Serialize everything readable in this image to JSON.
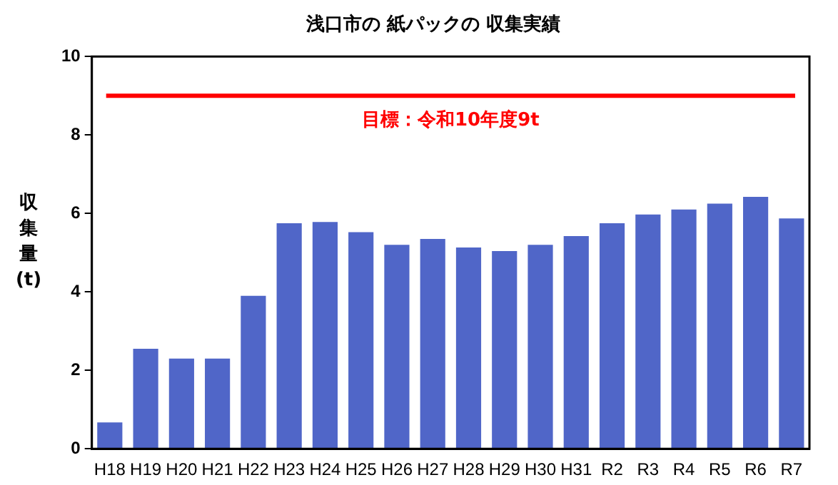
{
  "chart_data": {
    "type": "bar",
    "title": "浅口市の 紙パックの 収集実績",
    "ylabel": "収集量(t)",
    "categories": [
      "H18",
      "H19",
      "H20",
      "H21",
      "H22",
      "H23",
      "H24",
      "H25",
      "H26",
      "H27",
      "H28",
      "H29",
      "H30",
      "H31",
      "R2",
      "R3",
      "R4",
      "R5",
      "R6",
      "R7"
    ],
    "values": [
      0.67,
      2.55,
      2.3,
      2.3,
      3.9,
      5.75,
      5.78,
      5.52,
      5.2,
      5.35,
      5.13,
      5.04,
      5.2,
      5.42,
      5.75,
      5.97,
      6.1,
      6.25,
      6.42,
      5.87
    ],
    "color": "#5066c8",
    "ylim": [
      0,
      10
    ],
    "yticks": [
      0,
      2,
      4,
      6,
      8,
      10
    ],
    "grid": false,
    "legend": false,
    "ref_lines": [
      {
        "axis": "y",
        "value": 9,
        "label": "目標：令和10年度9t",
        "color": "#ff0000"
      }
    ]
  }
}
